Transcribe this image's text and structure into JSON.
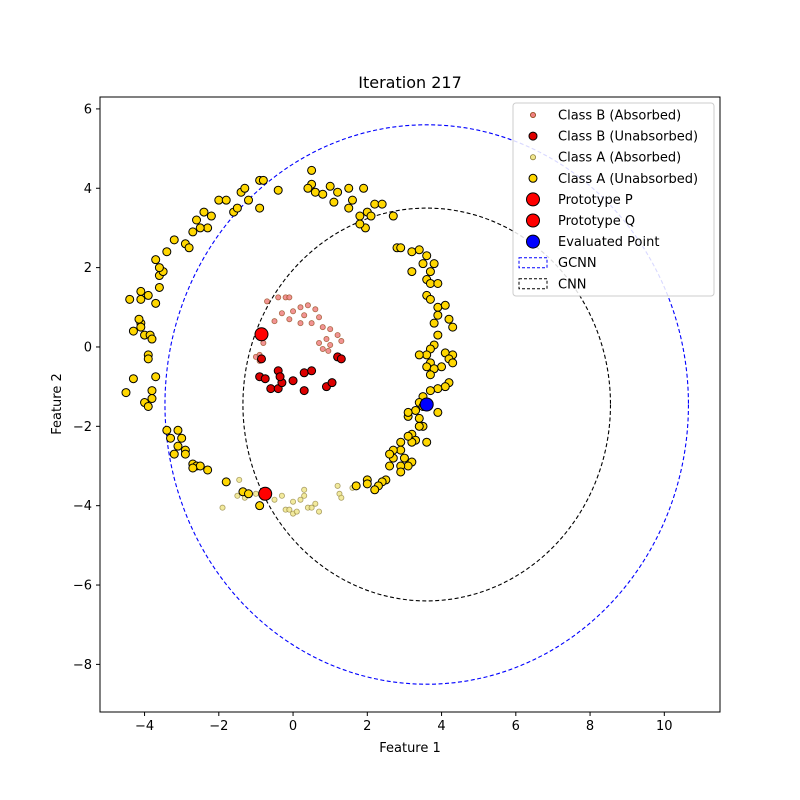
{
  "chart_data": {
    "type": "scatter",
    "title": "Iteration 217",
    "xlabel": "Feature 1",
    "ylabel": "Feature 2",
    "xlim": [
      -5.2,
      11.5
    ],
    "ylim": [
      -9.2,
      6.3
    ],
    "xticks": [
      -4,
      -2,
      0,
      2,
      4,
      6,
      8,
      10
    ],
    "yticks": [
      -8,
      -6,
      -4,
      -2,
      0,
      2,
      4,
      6
    ],
    "xtick_labels": [
      "−4",
      "−2",
      "0",
      "2",
      "4",
      "6",
      "8",
      "10"
    ],
    "ytick_labels": [
      "−8",
      "−6",
      "−4",
      "−2",
      "0",
      "2",
      "4",
      "6"
    ],
    "grid": false,
    "legend_position": "top-right",
    "series": [
      {
        "name": "Class B (Absorbed)",
        "marker": "small-circle",
        "color": "#f08080",
        "edge": "#8b4513",
        "points": [
          [
            -0.7,
            1.15
          ],
          [
            -0.4,
            1.25
          ],
          [
            -0.2,
            1.25
          ],
          [
            -0.1,
            1.25
          ],
          [
            0.2,
            1.0
          ],
          [
            0.4,
            1.05
          ],
          [
            0.6,
            0.95
          ],
          [
            0.7,
            0.75
          ],
          [
            0.8,
            0.5
          ],
          [
            0.3,
            0.8
          ],
          [
            0.0,
            0.9
          ],
          [
            -0.3,
            0.85
          ],
          [
            -0.5,
            0.65
          ],
          [
            -0.1,
            0.7
          ],
          [
            0.2,
            0.6
          ],
          [
            0.5,
            0.6
          ],
          [
            1.0,
            0.45
          ],
          [
            1.2,
            0.3
          ],
          [
            0.9,
            0.2
          ],
          [
            0.7,
            0.1
          ],
          [
            1.0,
            0.05
          ],
          [
            1.3,
            0.15
          ],
          [
            -0.8,
            0.1
          ],
          [
            -1.0,
            -0.25
          ],
          [
            -0.9,
            -0.35
          ],
          [
            -0.9,
            -0.2
          ],
          [
            0.8,
            -0.05
          ],
          [
            0.95,
            -0.1
          ]
        ]
      },
      {
        "name": "Class B (Unabsorbed)",
        "marker": "circle",
        "color": "#dd0000",
        "edge": "#000000",
        "points": [
          [
            -0.85,
            -0.3
          ],
          [
            -0.9,
            -0.75
          ],
          [
            -0.75,
            -0.8
          ],
          [
            -0.6,
            -1.05
          ],
          [
            -0.4,
            -1.05
          ],
          [
            -0.3,
            -0.9
          ],
          [
            -0.4,
            -0.6
          ],
          [
            0.0,
            -0.85
          ],
          [
            0.3,
            -0.65
          ],
          [
            0.5,
            -0.6
          ],
          [
            0.3,
            -1.1
          ],
          [
            0.9,
            -1.0
          ],
          [
            1.05,
            -0.9
          ],
          [
            1.2,
            -0.25
          ],
          [
            1.3,
            -0.3
          ],
          [
            -0.35,
            -0.75
          ]
        ]
      },
      {
        "name": "Class A (Absorbed)",
        "marker": "small-circle",
        "color": "#f0e68c",
        "edge": "#8b7d3a",
        "points": [
          [
            -1.9,
            -4.05
          ],
          [
            -1.5,
            -3.75
          ],
          [
            -1.45,
            -3.35
          ],
          [
            -1.3,
            -3.8
          ],
          [
            -1.0,
            -3.7
          ],
          [
            -0.8,
            -3.8
          ],
          [
            -0.5,
            -3.85
          ],
          [
            -0.3,
            -3.75
          ],
          [
            -0.2,
            -4.1
          ],
          [
            0.0,
            -3.9
          ],
          [
            0.0,
            -4.2
          ],
          [
            0.1,
            -4.15
          ],
          [
            0.2,
            -3.85
          ],
          [
            0.3,
            -3.75
          ],
          [
            0.3,
            -3.6
          ],
          [
            0.4,
            -4.05
          ],
          [
            0.5,
            -4.05
          ],
          [
            0.7,
            -4.15
          ],
          [
            1.2,
            -3.5
          ],
          [
            1.25,
            -3.7
          ],
          [
            1.3,
            -3.8
          ],
          [
            1.6,
            -3.55
          ],
          [
            -0.1,
            -4.1
          ],
          [
            0.6,
            -3.95
          ]
        ]
      },
      {
        "name": "Class A (Unabsorbed)",
        "marker": "circle",
        "color": "#ffd700",
        "edge": "#000000",
        "points": [
          [
            -4.5,
            -1.15
          ],
          [
            -4.3,
            -0.8
          ],
          [
            -4.0,
            -1.4
          ],
          [
            -3.9,
            -1.5
          ],
          [
            -3.8,
            -1.1
          ],
          [
            -3.8,
            -1.3
          ],
          [
            -3.7,
            -0.75
          ],
          [
            -3.9,
            -0.2
          ],
          [
            -3.9,
            -0.3
          ],
          [
            -4.0,
            0.3
          ],
          [
            -4.1,
            0.6
          ],
          [
            -4.15,
            0.7
          ],
          [
            -4.1,
            0.5
          ],
          [
            -4.3,
            0.4
          ],
          [
            -3.85,
            0.3
          ],
          [
            -3.8,
            0.2
          ],
          [
            -4.1,
            1.2
          ],
          [
            -4.1,
            1.4
          ],
          [
            -3.9,
            1.3
          ],
          [
            -3.7,
            1.1
          ],
          [
            -4.4,
            1.2
          ],
          [
            -3.6,
            1.5
          ],
          [
            -3.6,
            1.8
          ],
          [
            -3.5,
            1.9
          ],
          [
            -3.6,
            2.0
          ],
          [
            -3.7,
            2.2
          ],
          [
            -3.4,
            2.4
          ],
          [
            -3.2,
            2.7
          ],
          [
            -2.9,
            2.6
          ],
          [
            -2.7,
            2.9
          ],
          [
            -2.8,
            2.5
          ],
          [
            -2.6,
            3.2
          ],
          [
            -2.4,
            3.4
          ],
          [
            -2.3,
            3.0
          ],
          [
            -2.5,
            3.0
          ],
          [
            -2.2,
            3.3
          ],
          [
            -2.0,
            3.7
          ],
          [
            -1.8,
            3.7
          ],
          [
            -1.6,
            3.4
          ],
          [
            -1.5,
            3.5
          ],
          [
            -1.4,
            3.9
          ],
          [
            -1.3,
            4.0
          ],
          [
            -1.2,
            3.7
          ],
          [
            -0.9,
            4.2
          ],
          [
            -0.8,
            4.2
          ],
          [
            -0.9,
            3.5
          ],
          [
            -0.4,
            3.95
          ],
          [
            0.5,
            4.45
          ],
          [
            0.5,
            4.1
          ],
          [
            0.4,
            4.0
          ],
          [
            0.6,
            3.9
          ],
          [
            0.8,
            3.85
          ],
          [
            1.0,
            4.05
          ],
          [
            1.1,
            3.65
          ],
          [
            1.2,
            3.9
          ],
          [
            1.5,
            4.0
          ],
          [
            1.5,
            3.5
          ],
          [
            1.6,
            3.7
          ],
          [
            1.9,
            4.0
          ],
          [
            1.8,
            3.3
          ],
          [
            2.0,
            3.4
          ],
          [
            1.95,
            3.0
          ],
          [
            2.1,
            3.3
          ],
          [
            2.2,
            3.6
          ],
          [
            2.4,
            3.6
          ],
          [
            1.8,
            3.1
          ],
          [
            2.7,
            3.3
          ],
          [
            2.8,
            2.5
          ],
          [
            2.9,
            2.5
          ],
          [
            3.2,
            2.4
          ],
          [
            3.4,
            2.45
          ],
          [
            3.5,
            2.1
          ],
          [
            3.6,
            2.3
          ],
          [
            3.7,
            1.9
          ],
          [
            3.8,
            2.1
          ],
          [
            3.6,
            1.7
          ],
          [
            3.7,
            1.6
          ],
          [
            3.9,
            1.6
          ],
          [
            3.2,
            1.9
          ],
          [
            3.6,
            1.3
          ],
          [
            3.7,
            1.2
          ],
          [
            3.9,
            1.0
          ],
          [
            4.1,
            1.05
          ],
          [
            3.9,
            0.8
          ],
          [
            3.8,
            0.6
          ],
          [
            4.2,
            0.7
          ],
          [
            4.3,
            0.5
          ],
          [
            3.8,
            0.05
          ],
          [
            3.9,
            0.3
          ],
          [
            3.7,
            -0.05
          ],
          [
            3.6,
            -0.2
          ],
          [
            4.1,
            -0.15
          ],
          [
            4.3,
            -0.2
          ],
          [
            4.2,
            -0.3
          ],
          [
            4.3,
            -0.4
          ],
          [
            4.0,
            -0.5
          ],
          [
            3.4,
            -0.2
          ],
          [
            3.7,
            -0.4
          ],
          [
            3.6,
            -0.5
          ],
          [
            3.8,
            -0.55
          ],
          [
            3.7,
            -0.7
          ],
          [
            4.2,
            -0.9
          ],
          [
            4.1,
            -1.0
          ],
          [
            3.9,
            -1.05
          ],
          [
            3.7,
            -1.1
          ],
          [
            3.5,
            -1.25
          ],
          [
            3.4,
            -1.4
          ],
          [
            3.3,
            -1.6
          ],
          [
            3.5,
            -1.5
          ],
          [
            3.9,
            -1.65
          ],
          [
            3.5,
            -2.0
          ],
          [
            3.4,
            -1.8
          ],
          [
            3.4,
            -2.0
          ],
          [
            3.2,
            -2.2
          ],
          [
            3.1,
            -1.75
          ],
          [
            3.1,
            -1.65
          ],
          [
            3.6,
            -2.4
          ],
          [
            3.3,
            -2.35
          ],
          [
            3.2,
            -2.4
          ],
          [
            3.1,
            -2.25
          ],
          [
            2.9,
            -2.4
          ],
          [
            2.9,
            -2.6
          ],
          [
            3.0,
            -2.8
          ],
          [
            3.2,
            -2.9
          ],
          [
            3.1,
            -3.0
          ],
          [
            2.9,
            -3.0
          ],
          [
            2.9,
            -3.15
          ],
          [
            2.7,
            -2.6
          ],
          [
            2.7,
            -2.8
          ],
          [
            2.6,
            -2.7
          ],
          [
            2.6,
            -3.0
          ],
          [
            2.5,
            -3.35
          ],
          [
            2.4,
            -3.4
          ],
          [
            2.3,
            -3.5
          ],
          [
            2.0,
            -3.35
          ],
          [
            2.0,
            -3.45
          ],
          [
            1.7,
            -3.5
          ],
          [
            2.2,
            -3.6
          ],
          [
            -3.3,
            -2.3
          ],
          [
            -3.4,
            -2.1
          ],
          [
            -3.1,
            -2.1
          ],
          [
            -3.1,
            -2.5
          ],
          [
            -3.2,
            -2.7
          ],
          [
            -2.9,
            -2.6
          ],
          [
            -2.9,
            -2.7
          ],
          [
            -3.0,
            -2.3
          ],
          [
            -2.7,
            -2.95
          ],
          [
            -2.6,
            -3.0
          ],
          [
            -2.5,
            -3.0
          ],
          [
            -2.3,
            -3.1
          ],
          [
            -2.7,
            -3.05
          ],
          [
            -1.8,
            -3.4
          ],
          [
            -1.35,
            -3.65
          ],
          [
            -1.2,
            -3.7
          ],
          [
            -0.9,
            -4.0
          ]
        ]
      },
      {
        "name": "Prototype P",
        "marker": "large-circle",
        "color": "#ff0000",
        "edge": "#000000",
        "points": [
          [
            -0.75,
            -3.7
          ]
        ]
      },
      {
        "name": "Prototype Q",
        "marker": "large-circle",
        "color": "#ff0000",
        "edge": "#000000",
        "points": [
          [
            -0.85,
            0.32
          ]
        ]
      },
      {
        "name": "Evaluated Point",
        "marker": "large-circle",
        "color": "#0000ff",
        "edge": "#000000",
        "points": [
          [
            3.6,
            -1.45
          ]
        ]
      }
    ],
    "circles": [
      {
        "name": "GCNN",
        "center": [
          3.6,
          -1.45
        ],
        "radius": 7.05,
        "color": "#0000ff",
        "style": "dashed"
      },
      {
        "name": "CNN",
        "center": [
          3.6,
          -1.45
        ],
        "radius": 4.95,
        "color": "#000000",
        "style": "dashed"
      }
    ],
    "legend": [
      {
        "label": "Class B (Absorbed)",
        "kind": "small-circle",
        "color": "#f08080",
        "edge": "#8b4513"
      },
      {
        "label": "Class B (Unabsorbed)",
        "kind": "circle",
        "color": "#dd0000",
        "edge": "#000000"
      },
      {
        "label": "Class A (Absorbed)",
        "kind": "small-circle",
        "color": "#f0e68c",
        "edge": "#8b7d3a"
      },
      {
        "label": "Class A (Unabsorbed)",
        "kind": "circle",
        "color": "#ffd700",
        "edge": "#000000"
      },
      {
        "label": "Prototype P",
        "kind": "large-circle",
        "color": "#ff0000",
        "edge": "#000000"
      },
      {
        "label": "Prototype Q",
        "kind": "large-circle",
        "color": "#ff0000",
        "edge": "#000000"
      },
      {
        "label": "Evaluated Point",
        "kind": "large-circle",
        "color": "#0000ff",
        "edge": "#000000"
      },
      {
        "label": "GCNN",
        "kind": "dashed-line",
        "color": "#0000ff"
      },
      {
        "label": "CNN",
        "kind": "dashed-line",
        "color": "#000000"
      }
    ]
  }
}
